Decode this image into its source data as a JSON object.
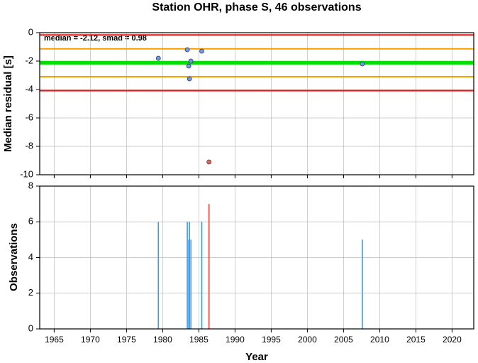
{
  "chart_data": [
    {
      "type": "scatter",
      "title": "Station OHR, phase S, 46 observations",
      "ylabel": "Median residual [s]",
      "annotation": "median = -2.12, smad = 0.98",
      "x": [
        1979.4,
        1983.4,
        1983.6,
        1983.7,
        1983.9,
        1985.4,
        2007.6,
        1986.4
      ],
      "values": [
        -1.8,
        -1.2,
        -2.35,
        -3.25,
        -2.0,
        -1.3,
        -2.2,
        -9.1
      ],
      "colors": [
        "#6a9cf0",
        "#6a9cf0",
        "#6a9cf0",
        "#6a9cf0",
        "#6a9cf0",
        "#6a9cf0",
        "#6a9cf0",
        "#f06a5a"
      ],
      "hlines": [
        {
          "value": -0.16,
          "color": "#ee1111"
        },
        {
          "value": -1.14,
          "color": "#f5a000"
        },
        {
          "value": -2.12,
          "color": "#00e000"
        },
        {
          "value": -3.1,
          "color": "#f5a000"
        },
        {
          "value": -4.08,
          "color": "#ee1111"
        }
      ],
      "xlim": [
        1963,
        2023
      ],
      "xticks": [
        1965,
        1970,
        1975,
        1980,
        1985,
        1990,
        1995,
        2000,
        2005,
        2010,
        2015,
        2020
      ],
      "ylim": [
        -10,
        0
      ],
      "yticks": [
        0,
        -2,
        -4,
        -6,
        -8,
        -10
      ],
      "grid": true
    },
    {
      "type": "bar",
      "ylabel": "Observations",
      "xlabel": "Year",
      "x": [
        1979.4,
        1983.4,
        1983.6,
        1983.7,
        1983.9,
        1985.4,
        1986.4,
        2007.6
      ],
      "values": [
        6,
        6,
        5,
        6,
        5,
        6,
        7,
        5
      ],
      "colors": [
        "#3d9be6",
        "#3d9be6",
        "#3d9be6",
        "#3d9be6",
        "#3d9be6",
        "#3d9be6",
        "#e8443a",
        "#3d9be6"
      ],
      "xlim": [
        1963,
        2023
      ],
      "xticks": [
        1965,
        1970,
        1975,
        1980,
        1985,
        1990,
        1995,
        2000,
        2005,
        2010,
        2015,
        2020
      ],
      "ylim": [
        0,
        8
      ],
      "yticks": [
        0,
        2,
        4,
        6,
        8
      ],
      "grid": true
    }
  ]
}
